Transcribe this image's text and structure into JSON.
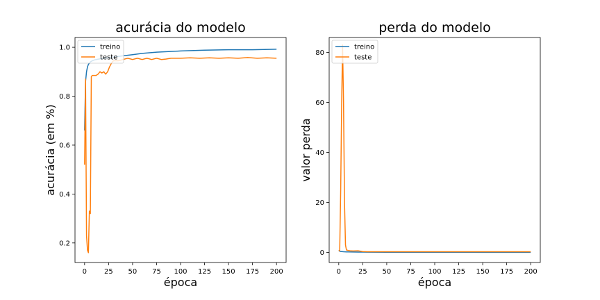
{
  "chart_data": [
    {
      "type": "line",
      "title": "acurácia do modelo",
      "xlabel": "época",
      "ylabel": "acurácia (em %)",
      "xlim": [
        -10,
        210
      ],
      "ylim": [
        0.12,
        1.04
      ],
      "xticks": [
        0,
        25,
        50,
        75,
        100,
        125,
        150,
        175,
        200
      ],
      "yticks": [
        0.2,
        0.4,
        0.6,
        0.8,
        1.0
      ],
      "ytick_labels": [
        "0.2",
        "0.4",
        "0.6",
        "0.8",
        "1.0"
      ],
      "legend_position": "upper left",
      "series": [
        {
          "name": "treino",
          "color": "#1f77b4",
          "x": [
            0,
            1,
            2,
            3,
            4,
            5,
            6,
            8,
            10,
            12,
            15,
            20,
            25,
            30,
            40,
            50,
            60,
            75,
            100,
            125,
            150,
            175,
            200
          ],
          "y": [
            0.66,
            0.86,
            0.9,
            0.92,
            0.93,
            0.935,
            0.94,
            0.945,
            0.948,
            0.95,
            0.952,
            0.955,
            0.958,
            0.96,
            0.965,
            0.97,
            0.975,
            0.98,
            0.985,
            0.988,
            0.99,
            0.99,
            0.992
          ]
        },
        {
          "name": "teste",
          "color": "#ff7f0e",
          "x": [
            0,
            1,
            2,
            3,
            4,
            5,
            6,
            7,
            8,
            10,
            12,
            14,
            16,
            18,
            20,
            22,
            24,
            26,
            28,
            30,
            35,
            40,
            45,
            50,
            55,
            60,
            65,
            70,
            75,
            80,
            85,
            90,
            100,
            110,
            120,
            130,
            140,
            150,
            160,
            170,
            180,
            190,
            200
          ],
          "y": [
            0.52,
            0.87,
            0.23,
            0.17,
            0.16,
            0.33,
            0.32,
            0.88,
            0.885,
            0.885,
            0.885,
            0.89,
            0.9,
            0.895,
            0.9,
            0.89,
            0.9,
            0.92,
            0.935,
            0.945,
            0.945,
            0.95,
            0.955,
            0.95,
            0.955,
            0.95,
            0.955,
            0.95,
            0.955,
            0.95,
            0.952,
            0.955,
            0.955,
            0.957,
            0.955,
            0.957,
            0.955,
            0.957,
            0.955,
            0.958,
            0.955,
            0.957,
            0.955
          ]
        }
      ]
    },
    {
      "type": "line",
      "title": "perda do modelo",
      "xlabel": "época",
      "ylabel": "valor perda",
      "xlim": [
        -10,
        210
      ],
      "ylim": [
        -4,
        86
      ],
      "xticks": [
        0,
        25,
        50,
        75,
        100,
        125,
        150,
        175,
        200
      ],
      "yticks": [
        0,
        20,
        40,
        60,
        80
      ],
      "ytick_labels": [
        "0",
        "20",
        "40",
        "60",
        "80"
      ],
      "legend_position": "upper left",
      "series": [
        {
          "name": "treino",
          "color": "#1f77b4",
          "x": [
            0,
            1,
            2,
            3,
            5,
            8,
            10,
            15,
            20,
            25,
            30,
            50,
            75,
            100,
            125,
            150,
            175,
            200
          ],
          "y": [
            0.9,
            0.5,
            0.4,
            0.35,
            0.3,
            0.25,
            0.22,
            0.2,
            0.18,
            0.16,
            0.15,
            0.12,
            0.1,
            0.08,
            0.07,
            0.06,
            0.05,
            0.05
          ]
        },
        {
          "name": "teste",
          "color": "#ff7f0e",
          "x": [
            0,
            1,
            2,
            3,
            4,
            5,
            6,
            7,
            8,
            10,
            12,
            15,
            20,
            25,
            30,
            50,
            75,
            100,
            125,
            150,
            175,
            200
          ],
          "y": [
            0.6,
            0.8,
            25,
            60,
            83,
            60,
            20,
            3,
            1,
            0.8,
            0.7,
            0.6,
            0.7,
            0.4,
            0.3,
            0.3,
            0.3,
            0.3,
            0.3,
            0.3,
            0.3,
            0.3
          ]
        }
      ]
    }
  ]
}
